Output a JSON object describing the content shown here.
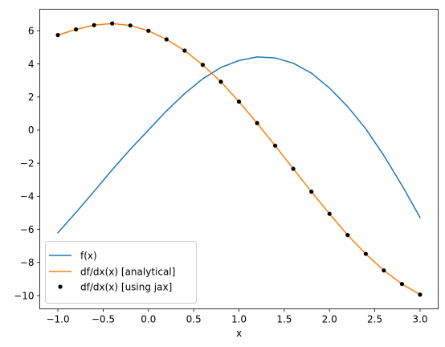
{
  "chart_data": {
    "type": "line",
    "xlabel": "x",
    "ylabel": "",
    "xlim": [
      -1.2,
      3.2
    ],
    "ylim": [
      -10.8,
      7.3
    ],
    "x_ticks": [
      -1.0,
      -0.5,
      0.0,
      0.5,
      1.0,
      1.5,
      2.0,
      2.5,
      3.0
    ],
    "x_tick_labels": [
      "−1.0",
      "−0.5",
      "0.0",
      "0.5",
      "1.0",
      "1.5",
      "2.0",
      "2.5",
      "3.0"
    ],
    "y_ticks": [
      -10,
      -8,
      -6,
      -4,
      -2,
      0,
      2,
      4,
      6
    ],
    "y_tick_labels": [
      "−10",
      "−8",
      "−6",
      "−4",
      "−2",
      "0",
      "2",
      "4",
      "6"
    ],
    "grid": false,
    "legend_position": "lower-left",
    "x": [
      -1.0,
      -0.8,
      -0.6,
      -0.4,
      -0.2,
      0.0,
      0.2,
      0.4,
      0.6,
      0.8,
      1.0,
      1.2,
      1.4,
      1.6,
      1.8,
      2.0,
      2.2,
      2.4,
      2.6,
      2.8,
      3.0
    ],
    "series": [
      {
        "name": "f(x)",
        "style": "line",
        "color": "#1f77b4",
        "values": [
          -6.2,
          -4.98,
          -3.7,
          -2.4,
          -1.16,
          0.0,
          1.16,
          2.2,
          3.1,
          3.78,
          4.2,
          4.42,
          4.36,
          4.04,
          3.44,
          2.54,
          1.42,
          0.08,
          -1.54,
          -3.34,
          -5.28
        ]
      },
      {
        "name": "df/dx(x) [analytical]",
        "style": "line",
        "color": "#ff7f0e",
        "values": [
          5.74,
          6.08,
          6.34,
          6.44,
          6.32,
          6.0,
          5.48,
          4.8,
          3.94,
          2.92,
          1.72,
          0.42,
          -0.94,
          -2.34,
          -3.72,
          -5.06,
          -6.34,
          -7.48,
          -8.48,
          -9.3,
          -9.94
        ]
      },
      {
        "name": "df/dx(x) [using jax]",
        "style": "points",
        "color": "#000000",
        "values": [
          5.74,
          6.08,
          6.34,
          6.44,
          6.32,
          6.0,
          5.48,
          4.8,
          3.94,
          2.92,
          1.72,
          0.42,
          -0.94,
          -2.34,
          -3.72,
          -5.06,
          -6.34,
          -7.48,
          -8.48,
          -9.3,
          -9.94
        ]
      }
    ]
  }
}
